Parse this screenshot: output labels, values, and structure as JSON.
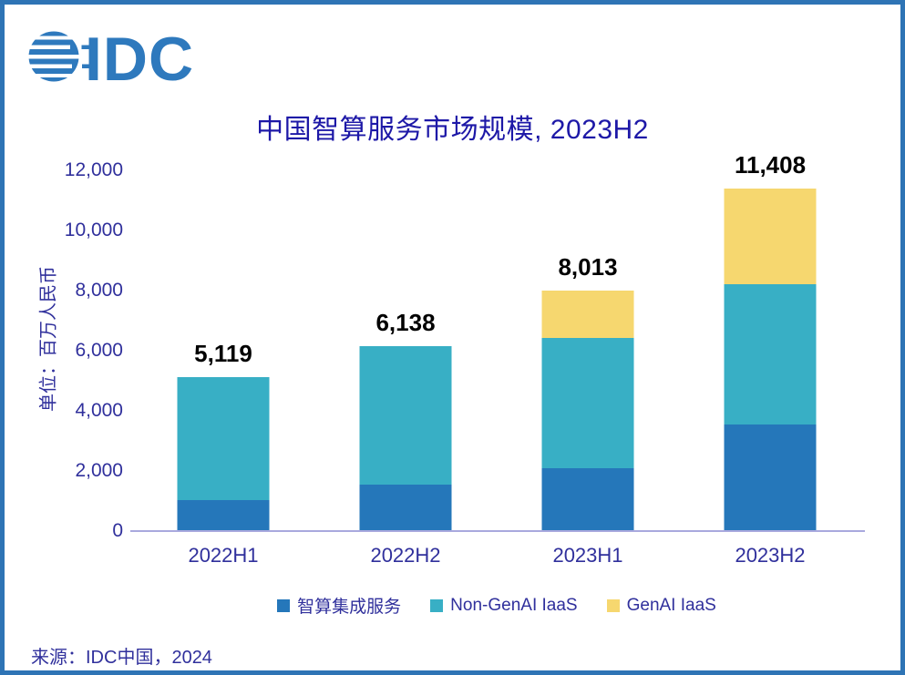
{
  "brand": {
    "logo_text": "IDC"
  },
  "source": "来源：IDC中国，2024",
  "colors": {
    "frame_border": "#2E74B5",
    "logo_blue": "#2E79BD",
    "title_text": "#1D18A7",
    "axis_text": "#30309C",
    "axis_line": "#A9A9DE",
    "total_label": "#000000"
  },
  "chart_data": {
    "type": "bar",
    "stacked": true,
    "title": "中国智算服务市场规模, 2023H2",
    "ylabel": "单位：百万人民币",
    "categories": [
      "2022H1",
      "2022H2",
      "2023H1",
      "2023H2"
    ],
    "series": [
      {
        "name": "智算集成服务",
        "color": "#2577BA",
        "values": [
          1030,
          1545,
          2090,
          3550
        ]
      },
      {
        "name": "Non-GenAI IaaS",
        "color": "#38AFC5",
        "values": [
          4089,
          4593,
          4323,
          4670
        ]
      },
      {
        "name": "GenAI IaaS",
        "color": "#F6D76F",
        "values": [
          0,
          0,
          1600,
          3188
        ]
      }
    ],
    "totals": [
      5119,
      6138,
      8013,
      11408
    ],
    "total_labels": [
      "5,119",
      "6,138",
      "8,013",
      "11,408"
    ],
    "ylim": [
      0,
      12000
    ],
    "yticks": [
      0,
      2000,
      4000,
      6000,
      8000,
      10000,
      12000
    ],
    "grid": false,
    "legend_position": "bottom"
  }
}
